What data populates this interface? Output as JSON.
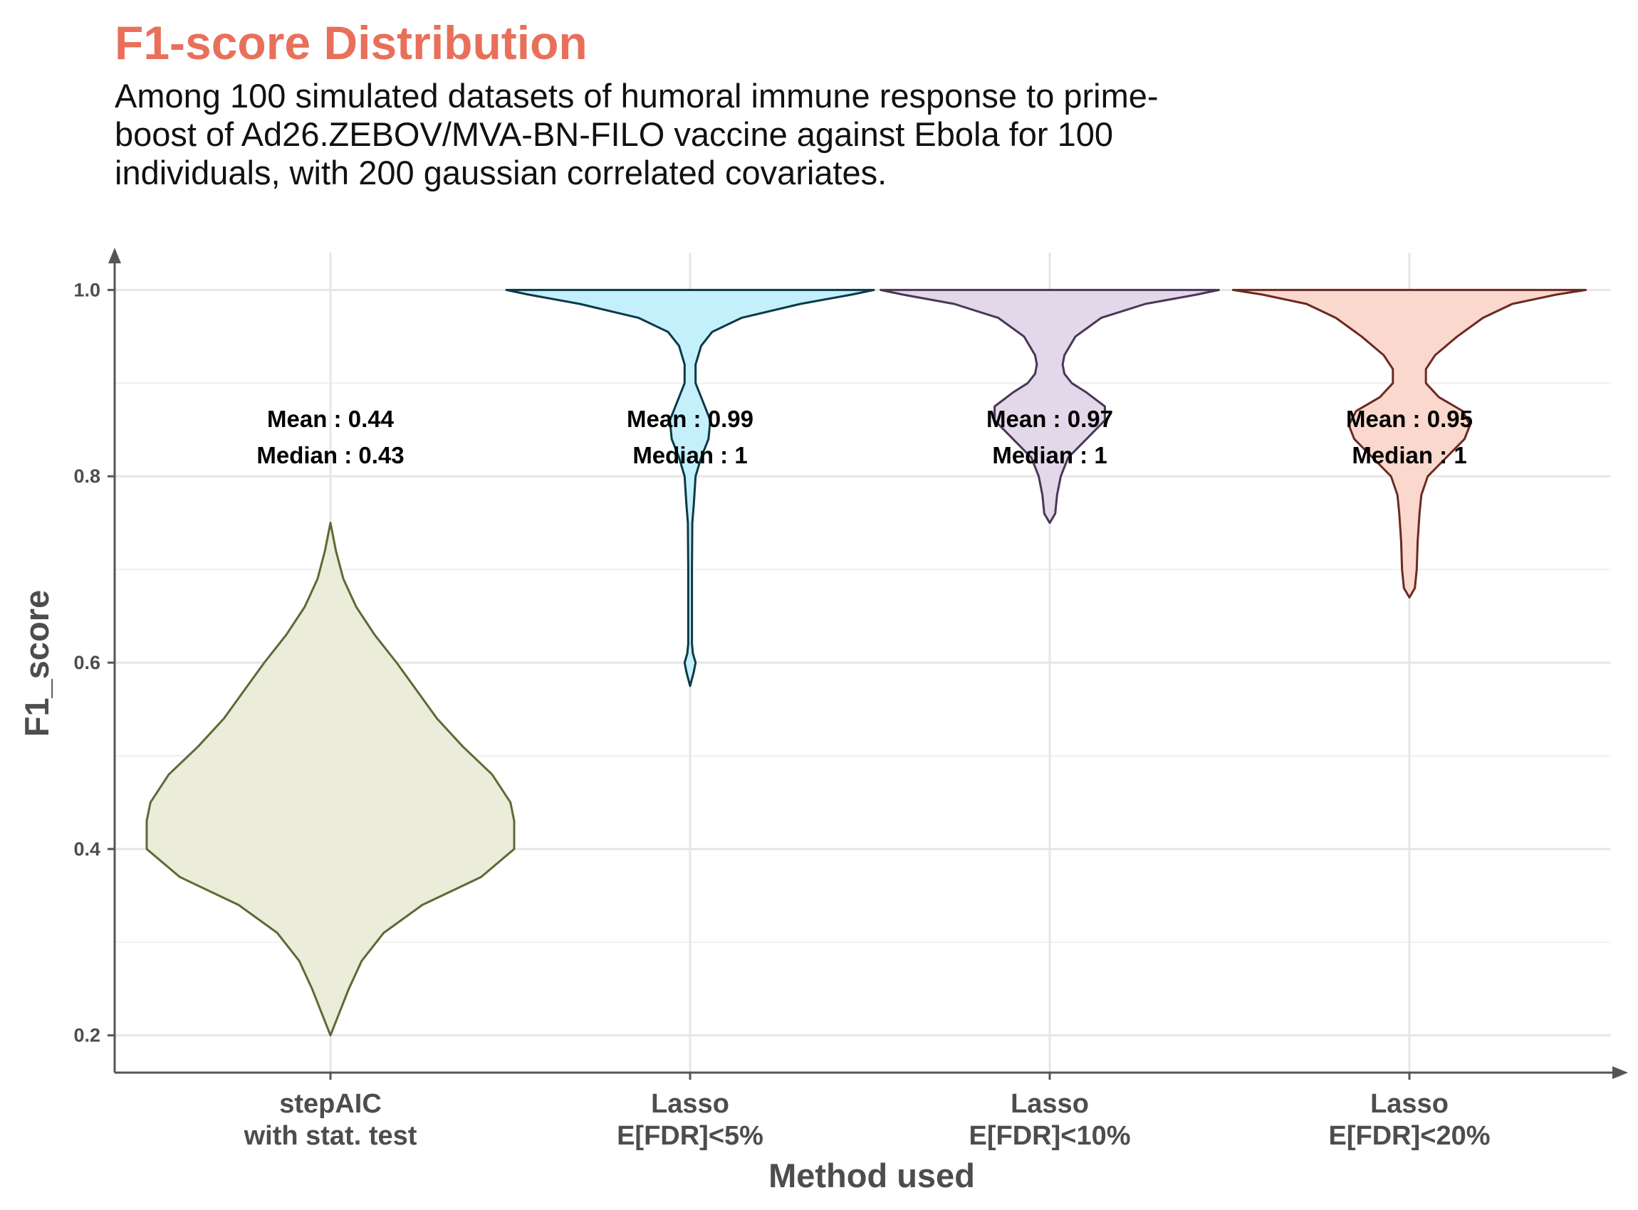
{
  "chart_data": {
    "type": "violin",
    "title": "F1-score Distribution",
    "subtitle": "Among 100 simulated datasets of humoral immune response to prime-boost of Ad26.ZEBOV/MVA-BN-FILO vaccine against Ebola for 100 individuals, with 200 gaussian correlated covariates.",
    "xlabel": "Method used",
    "ylabel": "F1_score",
    "ylim": [
      0.16,
      1.04
    ],
    "yticks": [
      "0.2",
      "0.4",
      "0.6",
      "0.8",
      "1.0"
    ],
    "grid": true,
    "legend": "none",
    "series": [
      {
        "category": [
          "stepAIC",
          "with stat. test"
        ],
        "mean_label": "Mean : 0.44",
        "median_label": "Median : 0.43",
        "mean": 0.44,
        "median": 0.43,
        "min": 0.2,
        "max": 0.75,
        "fill": "#EBEDDA",
        "stroke": "#5B6B35",
        "density": [
          [
            0.2,
            0.0
          ],
          [
            0.22,
            0.04
          ],
          [
            0.25,
            0.1
          ],
          [
            0.28,
            0.17
          ],
          [
            0.31,
            0.29
          ],
          [
            0.34,
            0.5
          ],
          [
            0.37,
            0.82
          ],
          [
            0.4,
            1.0
          ],
          [
            0.43,
            1.0
          ],
          [
            0.45,
            0.98
          ],
          [
            0.48,
            0.88
          ],
          [
            0.51,
            0.72
          ],
          [
            0.54,
            0.58
          ],
          [
            0.57,
            0.47
          ],
          [
            0.6,
            0.36
          ],
          [
            0.63,
            0.24
          ],
          [
            0.66,
            0.14
          ],
          [
            0.69,
            0.07
          ],
          [
            0.72,
            0.03
          ],
          [
            0.75,
            0.0
          ]
        ]
      },
      {
        "category": [
          "Lasso",
          "E[FDR]<5%"
        ],
        "mean_label": "Mean : 0.99",
        "median_label": "Median : 1",
        "mean": 0.99,
        "median": 1,
        "min": 0.575,
        "max": 1.0,
        "fill": "#C4F0FB",
        "stroke": "#0C3947",
        "density": [
          [
            0.575,
            0.0
          ],
          [
            0.59,
            0.02
          ],
          [
            0.6,
            0.03
          ],
          [
            0.61,
            0.015
          ],
          [
            0.62,
            0.01
          ],
          [
            0.65,
            0.01
          ],
          [
            0.7,
            0.01
          ],
          [
            0.75,
            0.012
          ],
          [
            0.77,
            0.02
          ],
          [
            0.8,
            0.03
          ],
          [
            0.82,
            0.06
          ],
          [
            0.84,
            0.1
          ],
          [
            0.86,
            0.11
          ],
          [
            0.88,
            0.07
          ],
          [
            0.9,
            0.03
          ],
          [
            0.92,
            0.03
          ],
          [
            0.94,
            0.06
          ],
          [
            0.955,
            0.12
          ],
          [
            0.97,
            0.28
          ],
          [
            0.985,
            0.6
          ],
          [
            0.995,
            0.88
          ],
          [
            1.0,
            1.0
          ]
        ]
      },
      {
        "category": [
          "Lasso",
          "E[FDR]<10%"
        ],
        "mean_label": "Mean : 0.97",
        "median_label": "Median : 1",
        "mean": 0.97,
        "median": 1,
        "min": 0.75,
        "max": 1.0,
        "fill": "#E3D8EA",
        "stroke": "#4B3657",
        "density": [
          [
            0.75,
            0.0
          ],
          [
            0.76,
            0.03
          ],
          [
            0.78,
            0.04
          ],
          [
            0.8,
            0.06
          ],
          [
            0.82,
            0.1
          ],
          [
            0.84,
            0.2
          ],
          [
            0.86,
            0.3
          ],
          [
            0.875,
            0.3
          ],
          [
            0.89,
            0.2
          ],
          [
            0.9,
            0.12
          ],
          [
            0.91,
            0.08
          ],
          [
            0.92,
            0.07
          ],
          [
            0.93,
            0.08
          ],
          [
            0.95,
            0.14
          ],
          [
            0.97,
            0.28
          ],
          [
            0.985,
            0.52
          ],
          [
            0.995,
            0.8
          ],
          [
            1.0,
            0.92
          ]
        ]
      },
      {
        "category": [
          "Lasso",
          "E[FDR]<20%"
        ],
        "mean_label": "Mean : 0.95",
        "median_label": "Median : 1",
        "mean": 0.95,
        "median": 1,
        "min": 0.67,
        "max": 1.0,
        "fill": "#FAD8CD",
        "stroke": "#6B2A22",
        "density": [
          [
            0.67,
            0.0
          ],
          [
            0.68,
            0.03
          ],
          [
            0.7,
            0.04
          ],
          [
            0.73,
            0.045
          ],
          [
            0.76,
            0.055
          ],
          [
            0.78,
            0.065
          ],
          [
            0.8,
            0.1
          ],
          [
            0.82,
            0.2
          ],
          [
            0.84,
            0.3
          ],
          [
            0.855,
            0.33
          ],
          [
            0.87,
            0.29
          ],
          [
            0.885,
            0.16
          ],
          [
            0.9,
            0.09
          ],
          [
            0.915,
            0.09
          ],
          [
            0.93,
            0.14
          ],
          [
            0.95,
            0.26
          ],
          [
            0.97,
            0.4
          ],
          [
            0.985,
            0.56
          ],
          [
            0.995,
            0.8
          ],
          [
            1.0,
            0.96
          ]
        ]
      }
    ]
  }
}
